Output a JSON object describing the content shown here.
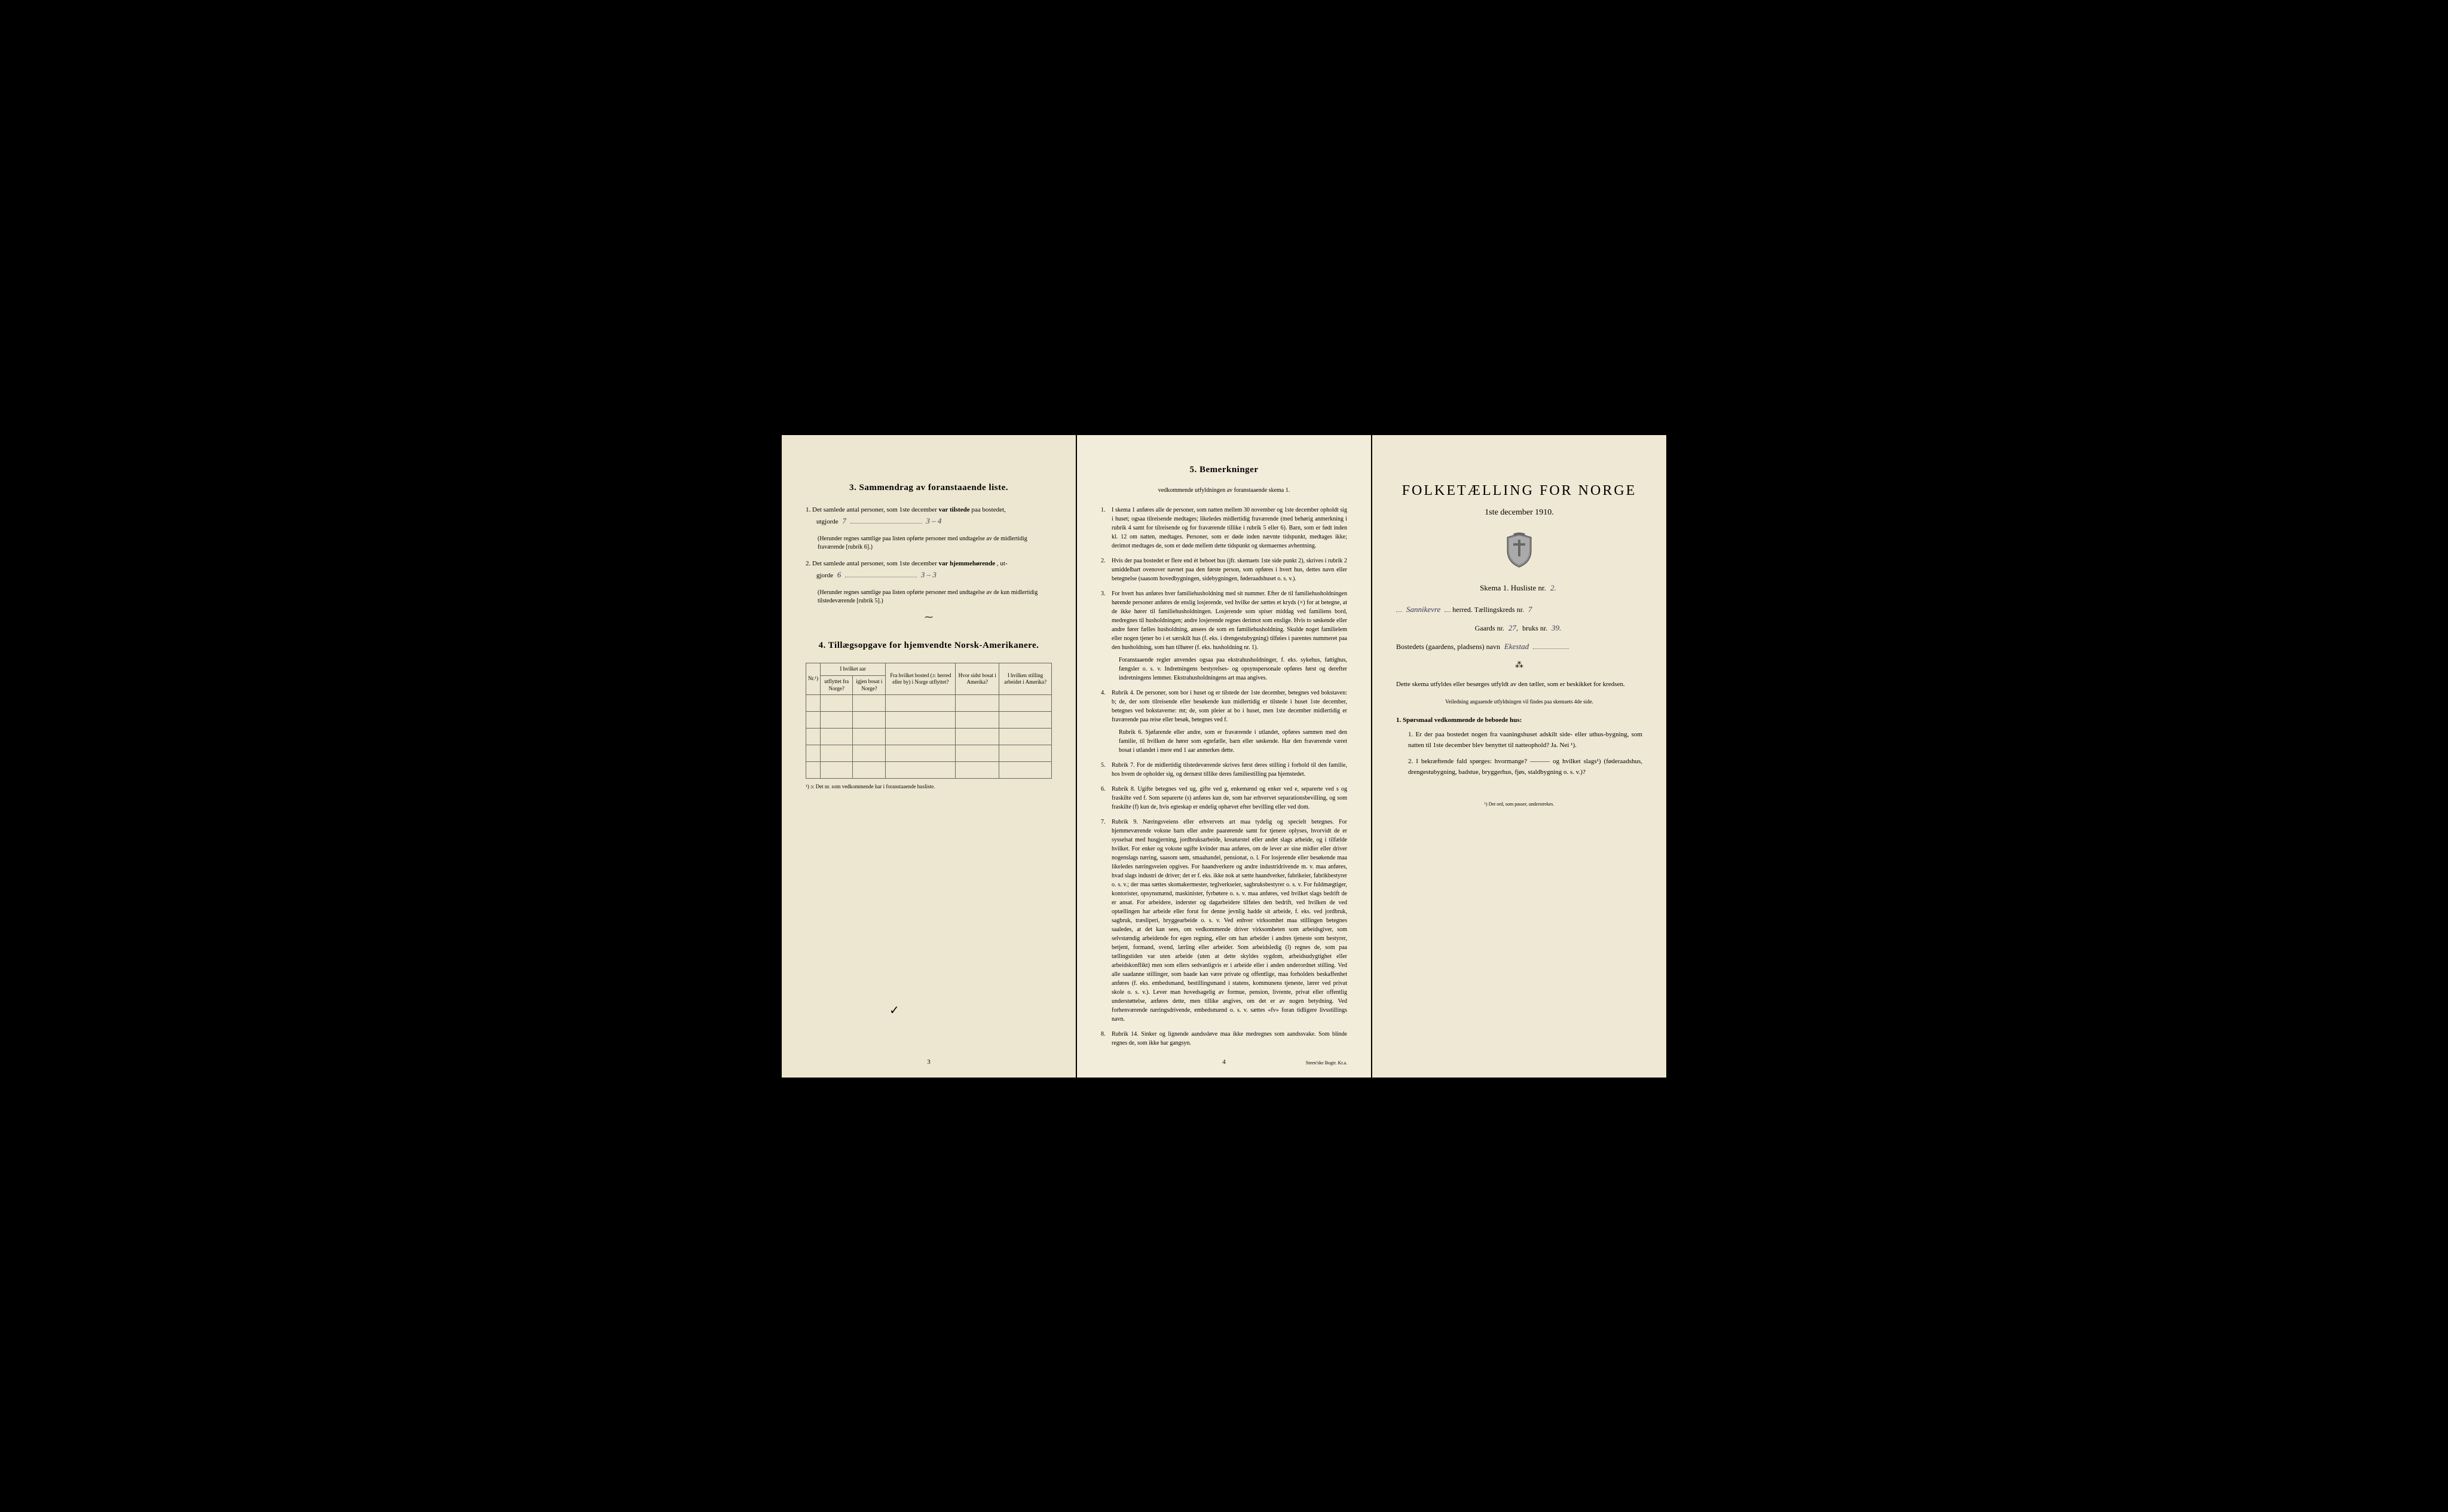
{
  "page1": {
    "section3_title": "3.   Sammendrag av foranstaaende liste.",
    "item1_pre": "1.  Det samlede antal personer, som 1ste december",
    "item1_bold": "var tilstede",
    "item1_post": "paa bostedet,",
    "item1_line2": "utgjorde",
    "item1_fill1": "7",
    "item1_fill2": "3 – 4",
    "item1_paren": "(Herunder regnes samtlige paa listen opførte personer med undtagelse av de midlertidig fraværende [rubrik 6].)",
    "item2_pre": "2.  Det samlede antal personer, som 1ste december",
    "item2_bold": "var hjemmehørende",
    "item2_post": ", ut-",
    "item2_line2": "gjorde",
    "item2_fill1": "6",
    "item2_fill2": "3 – 3",
    "item2_paren": "(Herunder regnes samtlige paa listen opførte personer med undtagelse av de kun midlertidig tilstedeværende [rubrik 5].)",
    "section4_title": "4.  Tillægsopgave for hjemvendte Norsk-Amerikanere.",
    "table": {
      "col1": "Nr.¹)",
      "col2a": "I hvilket aar",
      "col2b": "utflyttet fra Norge?",
      "col2c": "igjen bosat i Norge?",
      "col3": "Fra hvilket bosted (ɔ: herred eller by) i Norge utflyttet?",
      "col4": "Hvor sidst bosat i Amerika?",
      "col5": "I hvilken stilling arbeidet i Amerika?"
    },
    "footnote": "¹) ɔ: Det nr. som vedkommende har i foranstaaende husliste.",
    "page_num": "3"
  },
  "page2": {
    "section5_title": "5.   Bemerkninger",
    "section5_sub": "vedkommende utfyldningen av foranstaaende skema 1.",
    "remarks": [
      {
        "n": "1.",
        "t": "I skema 1 anføres alle de personer, som natten mellem 30 november og 1ste december opholdt sig i huset; ogsaa tilreisende medtages; likeledes midlertidig fraværende (med behørig anmerkning i rubrik 4 samt for tilreisende og for fraværende tillike i rubrik 5 eller 6). Barn, som er født inden kl. 12 om natten, medtages. Personer, som er døde inden nævnte tidspunkt, medtages ikke; derimot medtages de, som er døde mellem dette tidspunkt og skemaernes avhentning."
      },
      {
        "n": "2.",
        "t": "Hvis der paa bostedet er flere end ét beboet hus (jfr. skemaets 1ste side punkt 2), skrives i rubrik 2 umiddelbart ovenover navnet paa den første person, som opføres i hvert hus, dettes navn eller betegnelse (saasom hovedbygningen, sidebygningen, føderaadshuset o. s. v.)."
      },
      {
        "n": "3.",
        "t": "For hvert hus anføres hver familiehusholdning med sit nummer. Efter de til familiehusholdningen hørende personer anføres de enslig losjerende, ved hvilke der sættes et kryds (×) for at betegne, at de ikke hører til familiehusholdningen. Losjerende som spiser middag ved familiens bord, medregnes til husholdningen; andre losjerende regnes derimot som enslige. Hvis to søskende eller andre fører fælles husholdning, ansees de som en familiehusholdning. Skulde noget familielem eller nogen tjener bo i et særskilt hus (f. eks. i drengestubygning) tilføies i parentes nummeret paa den husholdning, som han tilhører (f. eks. husholdning nr. 1).",
        "sub": "Foranstaaende regler anvendes ogsaa paa ekstrahusholdninger, f. eks. sykehus, fattighus, fængsler o. s. v. Indretningens bestyrelses- og opsynspersonale opføres først og derefter indretningens lemmer. Ekstrahusholdningens art maa angives."
      },
      {
        "n": "4.",
        "t": "Rubrik 4. De personer, som bor i huset og er tilstede der 1ste december, betegnes ved bokstaven: b; de, der som tilreisende eller besøkende kun midlertidig er tilstede i huset 1ste december, betegnes ved bokstaverne: mt; de, som pleier at bo i huset, men 1ste december midlertidig er fraværende paa reise eller besøk, betegnes ved f.",
        "sub": "Rubrik 6. Sjøfarende eller andre, som er fraværende i utlandet, opføres sammen med den familie, til hvilken de hører som egtefælle, barn eller søskende.\nHar den fraværende været bosat i utlandet i mere end 1 aar anmerkes dette."
      },
      {
        "n": "5.",
        "t": "Rubrik 7. For de midlertidig tilstedeværende skrives først deres stilling i forhold til den familie, hos hvem de opholder sig, og dernæst tillike deres familiestilling paa hjemstedet."
      },
      {
        "n": "6.",
        "t": "Rubrik 8. Ugifte betegnes ved ug, gifte ved g, enkemænd og enker ved e, separerte ved s og fraskilte ved f. Som separerte (s) anføres kun de, som har erhvervet separationsbevilling, og som fraskilte (f) kun de, hvis egteskap er endelig ophævet efter bevilling eller ved dom."
      },
      {
        "n": "7.",
        "t": "Rubrik 9. Næringsveiens eller erhvervets art maa tydelig og specielt betegnes.\nFor hjemmeværende voksne barn eller andre paarørende samt for tjenere oplyses, hvorvidt de er sysselsat med husgjerning, jordbruksarbeide, kreaturstel eller andet slags arbeide, og i tilfælde hvilket. For enker og voksne ugifte kvinder maa anføres, om de lever av sine midler eller driver nogenslags næring, saasom søm, smaahandel, pensionat, o. l.\nFor losjerende eller besøkende maa likeledes næringsveien opgives.\nFor haandverkere og andre industridrivende m. v. maa anføres, hvad slags industri de driver; det er f. eks. ikke nok at sætte haandverker, fabrikeier, fabrikbestyrer o. s. v.; der maa sættes skomakermester, teglverkseier, sagbruksbestyrer o. s. v.\nFor fuldmægtiger, kontorister, opsynsmænd, maskinister, fyrbøtere o. s. v. maa anføres, ved hvilket slags bedrift de er ansat.\nFor arbeidere, inderster og dagarbeidere tilføies den bedrift, ved hvilken de ved optællingen har arbeide eller forut for denne jevnlig hadde sit arbeide, f. eks. ved jordbruk, sagbruk, træsliperi, bryggearbeide o. s. v.\nVed enhver virksomhet maa stillingen betegnes saaledes, at det kan sees, om vedkommende driver virksomheten som arbeidsgiver, som selvstændig arbeidende for egen regning, eller om han arbeider i andres tjeneste som bestyrer, betjent, formand, svend, lærling eller arbeider.\nSom arbeidsledig (l) regnes de, som paa tællingstiden var uten arbeide (uten at dette skyldes sygdom, arbeidsudygtighet eller arbeidskonflikt) men som ellers sedvanligvis er i arbeide eller i anden underordnet stilling.\nVed alle saadanne stillinger, som baade kan være private og offentlige, maa forholdets beskaffenhet anføres (f. eks. embedsmand, bestillingsmand i statens, kommunens tjeneste, lærer ved privat skole o. s. v.).\nLever man hovedsagelig av formue, pension, livrente, privat eller offentlig understøttelse, anføres dette, men tillike angives, om det er av nogen betydning.\nVed forhenværende næringsdrivende, embedsmænd o. s. v. sættes «fv» foran tidligere livsstillings navn."
      },
      {
        "n": "8.",
        "t": "Rubrik 14. Sinker og lignende aandssløve maa ikke medregnes som aandssvake.\nSom blinde regnes de, som ikke har gangsyn."
      }
    ],
    "page_num": "4",
    "printer": "Steen'ske Bogtr. Kr.a."
  },
  "page3": {
    "main_title": "FOLKETÆLLING FOR NORGE",
    "date": "1ste december 1910.",
    "skema_label": "Skema 1.  Husliste nr.",
    "skema_fill": "2.",
    "line1_fill": "Sannikevre",
    "line1_mid": "herred.  Tællingskreds nr.",
    "line1_fill2": "7",
    "line2_pre": "Gaards nr.",
    "line2_fill1": "27,",
    "line2_mid": "bruks nr.",
    "line2_fill2": "39.",
    "line3_pre": "Bostedets (gaardens, pladsens) navn",
    "line3_fill": "Ekestad",
    "body1": "Dette skema utfyldes eller besørges utfyldt av den tæller, som er beskikket for kredsen.",
    "body1_sub": "Veiledning angaaende utfyldningen vil findes paa skemaets 4de side.",
    "q_head": "1. Spørsmaal vedkommende de beboede hus:",
    "q1": "1.  Er der paa bostedet nogen fra vaaningshuset adskilt side- eller uthus-bygning, som natten til 1ste december blev benyttet til natteophold?   Ja.   Nei ¹).",
    "q2": "2.  I bekræftende fald spørges: hvormange? ——— og hvilket slags¹) (føderaadshus, drengestubygning, badstue, bryggerhus, fjøs, staldbygning o. s. v.)?",
    "tiny_footnote": "¹) Det ord, som passer, understrekes."
  }
}
